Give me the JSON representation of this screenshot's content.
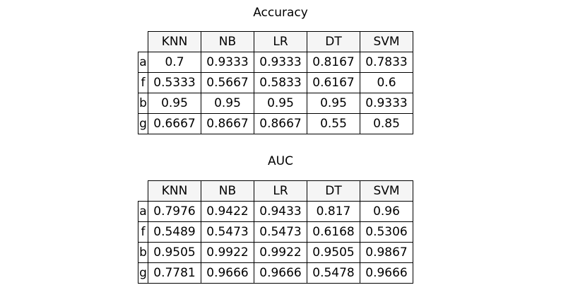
{
  "chart_data": [
    {
      "type": "table",
      "title": "Accuracy",
      "columns": [
        "KNN",
        "NB",
        "LR",
        "DT",
        "SVM"
      ],
      "rows": [
        {
          "label": "a",
          "values": [
            "0.7",
            "0.9333",
            "0.9333",
            "0.8167",
            "0.7833"
          ]
        },
        {
          "label": "f",
          "values": [
            "0.5333",
            "0.5667",
            "0.5833",
            "0.6167",
            "0.6"
          ]
        },
        {
          "label": "b",
          "values": [
            "0.95",
            "0.95",
            "0.95",
            "0.95",
            "0.9333"
          ]
        },
        {
          "label": "g",
          "values": [
            "0.6667",
            "0.8667",
            "0.8667",
            "0.55",
            "0.85"
          ]
        }
      ]
    },
    {
      "type": "table",
      "title": "AUC",
      "columns": [
        "KNN",
        "NB",
        "LR",
        "DT",
        "SVM"
      ],
      "rows": [
        {
          "label": "a",
          "values": [
            "0.7976",
            "0.9422",
            "0.9433",
            "0.817",
            "0.96"
          ]
        },
        {
          "label": "f",
          "values": [
            "0.5489",
            "0.5473",
            "0.5473",
            "0.6168",
            "0.5306"
          ]
        },
        {
          "label": "b",
          "values": [
            "0.9505",
            "0.9922",
            "0.9922",
            "0.9505",
            "0.9867"
          ]
        },
        {
          "label": "g",
          "values": [
            "0.7781",
            "0.9666",
            "0.9666",
            "0.5478",
            "0.9666"
          ]
        }
      ]
    }
  ],
  "colors": {
    "header_background": "#f5f5f5",
    "border": "#000000",
    "text": "#000000"
  }
}
